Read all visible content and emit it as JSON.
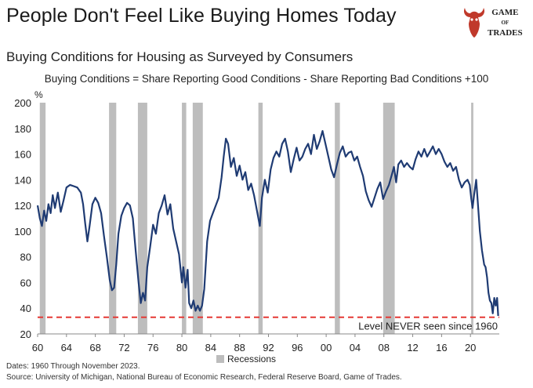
{
  "header": {
    "title": "People Don't Feel Like Buying Homes Today",
    "subtitle": "Buying Conditions for Housing as Surveyed by Consumers",
    "formula": "Buying Conditions = Share Reporting Good Conditions - Share Reporting Bad Conditions +100"
  },
  "logo": {
    "line1": "GAME",
    "line2": "OF",
    "line3": "TRADES",
    "icon": "bull-head-icon",
    "color": "#c0392b"
  },
  "footer": {
    "dates": "Dates: 1960 Through November 2023.",
    "source": "Source: University of Michigan, National Bureau of Economic Research, Federal Reserve Board, Game of Trades."
  },
  "chart_data": {
    "type": "line",
    "title": "Buying Conditions for Housing as Surveyed by Consumers",
    "ylabel": "%",
    "xlim": [
      1960,
      2024
    ],
    "ylim": [
      20,
      200
    ],
    "yticks": [
      20,
      40,
      60,
      80,
      100,
      120,
      140,
      160,
      180,
      200
    ],
    "xticks": [
      {
        "value": 1960,
        "label": "60"
      },
      {
        "value": 1964,
        "label": "64"
      },
      {
        "value": 1968,
        "label": "68"
      },
      {
        "value": 1972,
        "label": "72"
      },
      {
        "value": 1976,
        "label": "76"
      },
      {
        "value": 1980,
        "label": "80"
      },
      {
        "value": 1984,
        "label": "84"
      },
      {
        "value": 1988,
        "label": "88"
      },
      {
        "value": 1992,
        "label": "92"
      },
      {
        "value": 1996,
        "label": "96"
      },
      {
        "value": 2000,
        "label": "00"
      },
      {
        "value": 2004,
        "label": "04"
      },
      {
        "value": 2008,
        "label": "08"
      },
      {
        "value": 2012,
        "label": "12"
      },
      {
        "value": 2016,
        "label": "16"
      },
      {
        "value": 2020,
        "label": "20"
      }
    ],
    "line_color": "#1f3b73",
    "recession_color": "#bdbdbd",
    "threshold_color": "#e53935",
    "legend": "Recessions",
    "recessions": [
      [
        1960.3,
        1961.1
      ],
      [
        1969.9,
        1970.9
      ],
      [
        1973.9,
        1975.2
      ],
      [
        1980.0,
        1980.6
      ],
      [
        1981.5,
        1982.9
      ],
      [
        1990.6,
        1991.2
      ],
      [
        2001.2,
        2001.9
      ],
      [
        2007.9,
        2009.5
      ],
      [
        2020.1,
        2020.4
      ]
    ],
    "threshold": {
      "value": 33,
      "label": "Level NEVER seen since 1960"
    },
    "series": [
      {
        "name": "Buying Conditions",
        "points": [
          [
            1960.0,
            120
          ],
          [
            1960.3,
            110
          ],
          [
            1960.6,
            104
          ],
          [
            1960.9,
            116
          ],
          [
            1961.2,
            108
          ],
          [
            1961.5,
            121
          ],
          [
            1961.8,
            114
          ],
          [
            1962.1,
            128
          ],
          [
            1962.4,
            118
          ],
          [
            1962.8,
            130
          ],
          [
            1963.2,
            115
          ],
          [
            1963.6,
            124
          ],
          [
            1964.0,
            134
          ],
          [
            1964.5,
            136
          ],
          [
            1965.0,
            135
          ],
          [
            1965.5,
            134
          ],
          [
            1966.0,
            130
          ],
          [
            1966.3,
            121
          ],
          [
            1966.6,
            106
          ],
          [
            1966.9,
            92
          ],
          [
            1967.2,
            104
          ],
          [
            1967.6,
            121
          ],
          [
            1968.0,
            126
          ],
          [
            1968.4,
            122
          ],
          [
            1968.8,
            114
          ],
          [
            1969.2,
            96
          ],
          [
            1969.6,
            80
          ],
          [
            1970.0,
            62
          ],
          [
            1970.3,
            54
          ],
          [
            1970.6,
            56
          ],
          [
            1970.9,
            74
          ],
          [
            1971.2,
            98
          ],
          [
            1971.6,
            112
          ],
          [
            1972.0,
            118
          ],
          [
            1972.4,
            122
          ],
          [
            1972.8,
            120
          ],
          [
            1973.2,
            110
          ],
          [
            1973.6,
            84
          ],
          [
            1974.0,
            60
          ],
          [
            1974.3,
            44
          ],
          [
            1974.6,
            52
          ],
          [
            1974.9,
            46
          ],
          [
            1975.2,
            72
          ],
          [
            1975.6,
            88
          ],
          [
            1976.0,
            105
          ],
          [
            1976.4,
            98
          ],
          [
            1976.8,
            114
          ],
          [
            1977.2,
            120
          ],
          [
            1977.6,
            128
          ],
          [
            1978.0,
            113
          ],
          [
            1978.4,
            121
          ],
          [
            1978.8,
            102
          ],
          [
            1979.2,
            92
          ],
          [
            1979.6,
            82
          ],
          [
            1980.0,
            60
          ],
          [
            1980.2,
            72
          ],
          [
            1980.5,
            56
          ],
          [
            1980.8,
            70
          ],
          [
            1981.0,
            44
          ],
          [
            1981.3,
            40
          ],
          [
            1981.6,
            46
          ],
          [
            1981.9,
            38
          ],
          [
            1982.2,
            42
          ],
          [
            1982.5,
            38
          ],
          [
            1982.8,
            42
          ],
          [
            1983.1,
            55
          ],
          [
            1983.5,
            92
          ],
          [
            1983.9,
            108
          ],
          [
            1984.3,
            114
          ],
          [
            1984.7,
            120
          ],
          [
            1985.1,
            126
          ],
          [
            1985.5,
            142
          ],
          [
            1985.8,
            158
          ],
          [
            1986.1,
            172
          ],
          [
            1986.4,
            168
          ],
          [
            1986.8,
            150
          ],
          [
            1987.2,
            157
          ],
          [
            1987.6,
            143
          ],
          [
            1988.0,
            151
          ],
          [
            1988.4,
            140
          ],
          [
            1988.8,
            146
          ],
          [
            1989.2,
            132
          ],
          [
            1989.6,
            137
          ],
          [
            1990.0,
            128
          ],
          [
            1990.4,
            116
          ],
          [
            1990.8,
            104
          ],
          [
            1991.1,
            126
          ],
          [
            1991.5,
            140
          ],
          [
            1991.9,
            130
          ],
          [
            1992.3,
            148
          ],
          [
            1992.7,
            157
          ],
          [
            1993.1,
            162
          ],
          [
            1993.5,
            158
          ],
          [
            1993.9,
            168
          ],
          [
            1994.3,
            172
          ],
          [
            1994.7,
            162
          ],
          [
            1995.1,
            146
          ],
          [
            1995.5,
            156
          ],
          [
            1995.9,
            165
          ],
          [
            1996.3,
            155
          ],
          [
            1996.7,
            158
          ],
          [
            1997.1,
            164
          ],
          [
            1997.5,
            168
          ],
          [
            1997.9,
            160
          ],
          [
            1998.3,
            175
          ],
          [
            1998.7,
            164
          ],
          [
            1999.1,
            170
          ],
          [
            1999.5,
            178
          ],
          [
            1999.9,
            168
          ],
          [
            2000.3,
            158
          ],
          [
            2000.7,
            148
          ],
          [
            2001.1,
            142
          ],
          [
            2001.5,
            152
          ],
          [
            2001.9,
            161
          ],
          [
            2002.3,
            166
          ],
          [
            2002.7,
            158
          ],
          [
            2003.1,
            161
          ],
          [
            2003.5,
            162
          ],
          [
            2003.9,
            155
          ],
          [
            2004.3,
            158
          ],
          [
            2004.7,
            150
          ],
          [
            2005.1,
            143
          ],
          [
            2005.5,
            131
          ],
          [
            2005.9,
            124
          ],
          [
            2006.3,
            119
          ],
          [
            2006.7,
            126
          ],
          [
            2007.1,
            133
          ],
          [
            2007.5,
            138
          ],
          [
            2007.9,
            125
          ],
          [
            2008.3,
            131
          ],
          [
            2008.7,
            136
          ],
          [
            2009.1,
            144
          ],
          [
            2009.4,
            150
          ],
          [
            2009.7,
            138
          ],
          [
            2010.0,
            152
          ],
          [
            2010.4,
            155
          ],
          [
            2010.8,
            150
          ],
          [
            2011.2,
            153
          ],
          [
            2011.6,
            150
          ],
          [
            2012.0,
            148
          ],
          [
            2012.4,
            156
          ],
          [
            2012.8,
            162
          ],
          [
            2013.2,
            158
          ],
          [
            2013.6,
            164
          ],
          [
            2014.0,
            158
          ],
          [
            2014.4,
            162
          ],
          [
            2014.8,
            166
          ],
          [
            2015.2,
            160
          ],
          [
            2015.6,
            164
          ],
          [
            2016.0,
            160
          ],
          [
            2016.4,
            154
          ],
          [
            2016.8,
            150
          ],
          [
            2017.2,
            153
          ],
          [
            2017.6,
            147
          ],
          [
            2018.0,
            150
          ],
          [
            2018.4,
            140
          ],
          [
            2018.8,
            134
          ],
          [
            2019.2,
            138
          ],
          [
            2019.6,
            140
          ],
          [
            2019.9,
            136
          ],
          [
            2020.1,
            126
          ],
          [
            2020.3,
            118
          ],
          [
            2020.5,
            128
          ],
          [
            2020.8,
            140
          ],
          [
            2021.0,
            124
          ],
          [
            2021.3,
            100
          ],
          [
            2021.6,
            85
          ],
          [
            2021.9,
            74
          ],
          [
            2022.1,
            72
          ],
          [
            2022.3,
            64
          ],
          [
            2022.5,
            52
          ],
          [
            2022.7,
            46
          ],
          [
            2022.9,
            44
          ],
          [
            2023.1,
            36
          ],
          [
            2023.3,
            48
          ],
          [
            2023.5,
            42
          ],
          [
            2023.7,
            48
          ],
          [
            2023.85,
            34
          ]
        ]
      }
    ]
  }
}
